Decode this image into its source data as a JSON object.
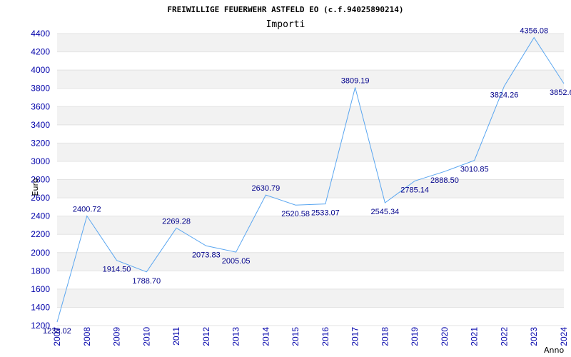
{
  "chart_data": {
    "type": "line",
    "title": "FREIWILLIGE FEUERWEHR ASTFELD EO (c.f.94025890214)",
    "subtitle": "Importi",
    "xlabel": "Anno",
    "ylabel": "Euro",
    "ylim": [
      1200,
      4400
    ],
    "ytick_step": 200,
    "grid": true,
    "colors": {
      "line": "#5aa6f0",
      "band": "#f2f2f2",
      "tick_text": "#0000aa",
      "data_label": "#00008b"
    },
    "x": [
      "2007",
      "2008",
      "2009",
      "2010",
      "2011",
      "2012",
      "2013",
      "2014",
      "2015",
      "2016",
      "2017",
      "2018",
      "2019",
      "2020",
      "2021",
      "2022",
      "2023",
      "2024"
    ],
    "values": [
      1238.02,
      2400.72,
      1914.5,
      1788.7,
      2269.28,
      2073.83,
      2005.05,
      2630.79,
      2520.58,
      2533.07,
      3809.19,
      2545.34,
      2785.14,
      2888.5,
      3010.85,
      3824.26,
      4356.08,
      3852.6
    ],
    "value_labels": [
      "1238.02",
      "2400.72",
      "1914.50",
      "1788.70",
      "2269.28",
      "2073.83",
      "2005.05",
      "2630.79",
      "2520.58",
      "2533.07",
      "3809.19",
      "2545.34",
      "2785.14",
      "2888.50",
      "3010.85",
      "3824.26",
      "4356.08",
      "3852.6"
    ]
  }
}
